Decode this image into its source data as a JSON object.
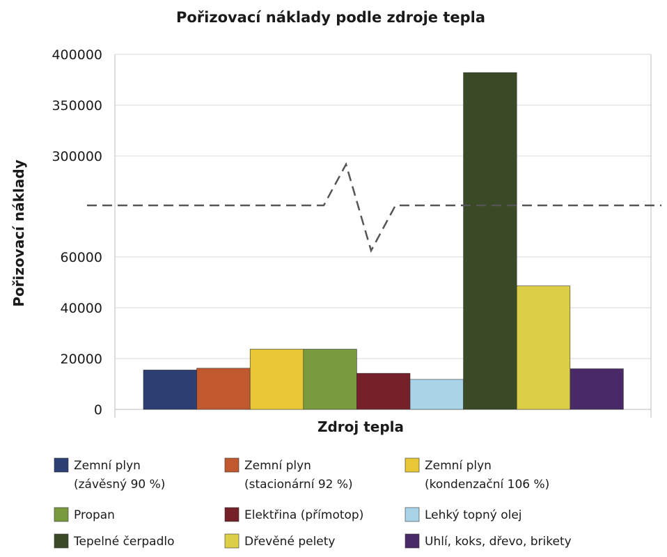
{
  "chart_data": {
    "type": "bar",
    "title": "Pořizovací náklady podle zdroje tepla",
    "xlabel": "Zdroj tepla",
    "ylabel": "Pořizovací náklady",
    "y_axis_break": true,
    "ticks_lower": [
      "0",
      "20000",
      "40000",
      "60000"
    ],
    "ticks_upper": [
      "300000",
      "350000",
      "400000"
    ],
    "grid": true,
    "legend_position": "bottom",
    "series": [
      {
        "name": "Zemní plyn (závěsný 90 %)",
        "legend_lines": [
          "Zemní plyn",
          "(závěsný 90 %)"
        ],
        "value": 15500,
        "color": "#2b3f73"
      },
      {
        "name": "Zemní plyn (stacionární 92 %)",
        "legend_lines": [
          "Zemní plyn",
          "(stacionární 92 %)"
        ],
        "value": 16200,
        "color": "#c0592e"
      },
      {
        "name": "Zemní plyn (kondenzační 106 %)",
        "legend_lines": [
          "Zemní plyn",
          "(kondenzační 106 %)"
        ],
        "value": 23700,
        "color": "#e8c736"
      },
      {
        "name": "Propan",
        "legend_lines": [
          "Propan"
        ],
        "value": 23700,
        "color": "#7a9a3e"
      },
      {
        "name": "Elektřina (přímotop)",
        "legend_lines": [
          "Elektřina (přímotop)"
        ],
        "value": 14200,
        "color": "#76202a"
      },
      {
        "name": "Lehký topný olej",
        "legend_lines": [
          "Lehký topný olej"
        ],
        "value": 11800,
        "color": "#a9d4e8"
      },
      {
        "name": "Tepelné čerpadlo",
        "legend_lines": [
          "Tepelné čerpadlo"
        ],
        "value": 382000,
        "color": "#3a4a26"
      },
      {
        "name": "Dřevěné pelety",
        "legend_lines": [
          "Dřevěné pelety"
        ],
        "value": 48600,
        "color": "#dccf45"
      },
      {
        "name": "Uhlí, koks, dřevo, brikety",
        "legend_lines": [
          "Uhlí, koks, dřevo, brikety"
        ],
        "value": 16000,
        "color": "#4a2a66"
      }
    ]
  }
}
